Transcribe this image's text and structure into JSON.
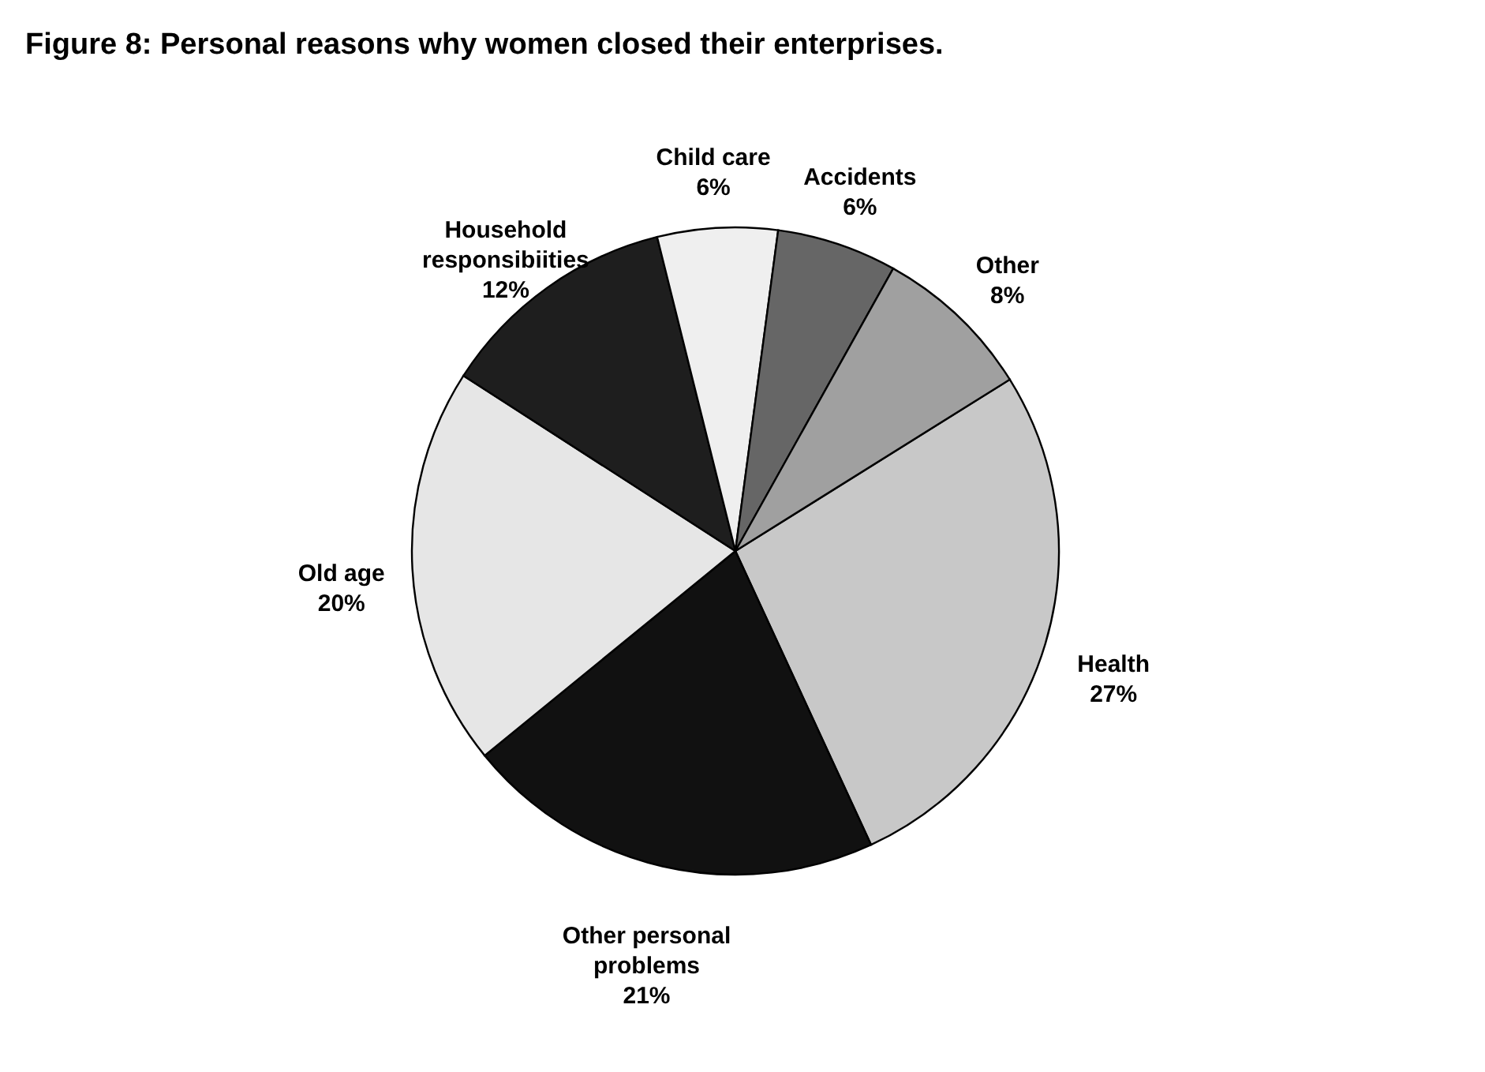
{
  "chart_data": {
    "type": "pie",
    "title": "Figure 8: Personal reasons why women closed their enterprises.",
    "categories": [
      "Health",
      "Other personal problems",
      "Old age",
      "Household responsibiities",
      "Child care",
      "Accidents",
      "Other"
    ],
    "values": [
      27,
      21,
      20,
      12,
      6,
      6,
      8
    ],
    "value_labels": [
      "27%",
      "21%",
      "20%",
      "12%",
      "6%",
      "6%",
      "8%"
    ],
    "colors": [
      "#c8c8c8",
      "#111111",
      "#e6e6e6",
      "#1e1e1e",
      "#efefef",
      "#666666",
      "#a0a0a0"
    ],
    "legend": false
  }
}
